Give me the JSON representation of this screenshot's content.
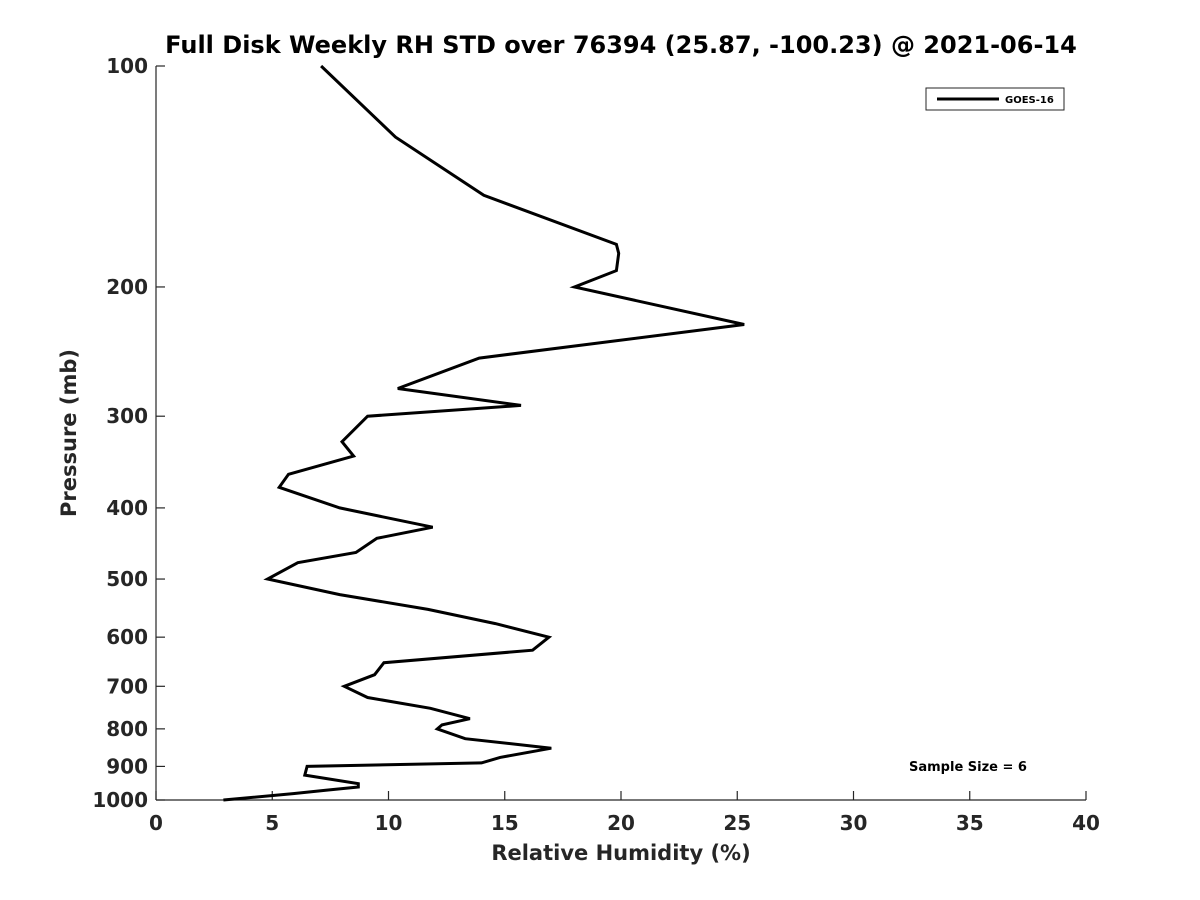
{
  "chart_data": {
    "type": "line",
    "title": "Full Disk Weekly RH STD over 76394 (25.87, -100.23) @ 2021-06-14",
    "xlabel": "Relative Humidity (%)",
    "ylabel": "Pressure (mb)",
    "xlim": [
      0,
      40
    ],
    "ylim": [
      100,
      1000
    ],
    "y_scale": "log",
    "y_reversed": true,
    "grid": false,
    "x_ticks": [
      0,
      5,
      10,
      15,
      20,
      25,
      30,
      35,
      40
    ],
    "x_tick_labels": [
      "0",
      "5",
      "10",
      "15",
      "20",
      "25",
      "30",
      "35",
      "40"
    ],
    "y_ticks": [
      100,
      200,
      300,
      400,
      500,
      600,
      700,
      800,
      900,
      1000
    ],
    "y_tick_labels": [
      "100",
      "200",
      "300",
      "400",
      "500",
      "600",
      "700",
      "800",
      "900",
      "1000"
    ],
    "legend_position": "top-right",
    "annotation": "Sample Size = 6",
    "series": [
      {
        "name": "GOES-16",
        "color": "#000000",
        "x": [
          7.1,
          10.3,
          14.1,
          19.8,
          19.9,
          19.8,
          18.0,
          25.3,
          13.9,
          10.4,
          15.7,
          9.1,
          8.0,
          8.5,
          5.7,
          5.3,
          7.9,
          11.9,
          9.5,
          8.6,
          6.1,
          4.8,
          7.9,
          11.7,
          14.6,
          16.9,
          16.2,
          9.8,
          9.4,
          8.1,
          9.1,
          11.8,
          13.5,
          12.3,
          12.1,
          13.3,
          17.0,
          14.8,
          14.0,
          6.5,
          6.4,
          8.7,
          8.7,
          7.3,
          5.9,
          2.9
        ],
        "y": [
          100,
          125,
          150,
          175,
          180,
          190,
          200,
          225,
          250,
          275,
          290,
          300,
          325,
          340,
          360,
          375,
          400,
          425,
          440,
          460,
          475,
          500,
          525,
          550,
          575,
          600,
          625,
          650,
          675,
          700,
          725,
          750,
          775,
          790,
          800,
          825,
          850,
          875,
          890,
          900,
          925,
          950,
          960,
          970,
          980,
          1000
        ]
      }
    ]
  }
}
